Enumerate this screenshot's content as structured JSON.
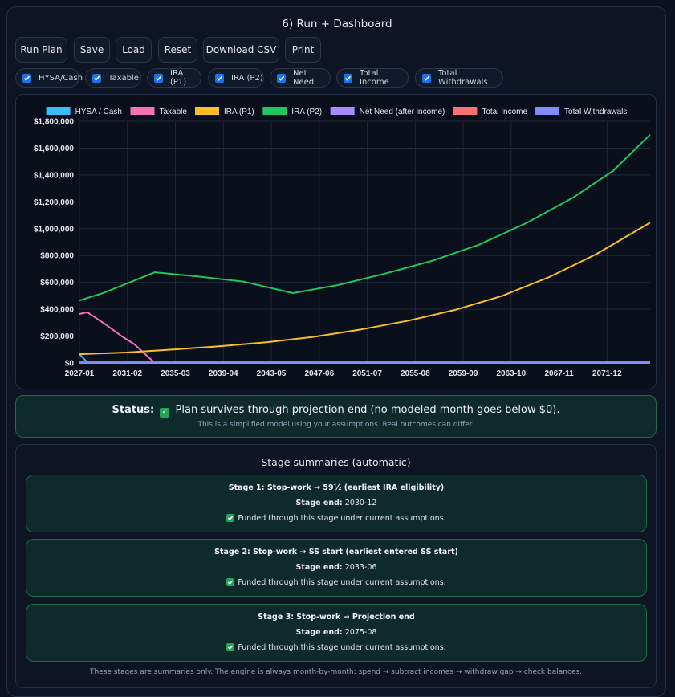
{
  "section_title": "6) Run + Dashboard",
  "buttons": [
    "Run Plan",
    "Save",
    "Load",
    "Reset",
    "Download CSV",
    "Print"
  ],
  "toggles": [
    "HYSA/Cash",
    "Taxable",
    "IRA (P1)",
    "IRA (P2)",
    "Net Need",
    "Total Income",
    "Total Withdrawals"
  ],
  "chart_data": {
    "type": "line",
    "legend_position": "top",
    "grid": true,
    "x_ticks": [
      "2027-01",
      "2031-02",
      "2035-03",
      "2039-04",
      "2043-05",
      "2047-06",
      "2051-07",
      "2055-08",
      "2059-09",
      "2063-10",
      "2067-11",
      "2071-12"
    ],
    "y_ticks": [
      "$0",
      "$200,000",
      "$400,000",
      "$600,000",
      "$800,000",
      "$1,000,000",
      "$1,200,000",
      "$1,400,000",
      "$1,600,000",
      "$1,800,000"
    ],
    "xlim": [
      "2027-01",
      "2075-08"
    ],
    "ylim": [
      0,
      1800000
    ],
    "series": [
      {
        "name": "HYSA / Cash",
        "color": "#38bdf8",
        "points": [
          [
            "2027-01",
            65000
          ],
          [
            "2027-09",
            5000
          ],
          [
            "2075-08",
            5000
          ]
        ]
      },
      {
        "name": "Taxable",
        "color": "#f472b6",
        "points": [
          [
            "2027-01",
            365000
          ],
          [
            "2027-09",
            378000
          ],
          [
            "2029-03",
            290000
          ],
          [
            "2030-09",
            195000
          ],
          [
            "2031-09",
            140000
          ],
          [
            "2033-06",
            0
          ],
          [
            "2075-08",
            0
          ]
        ]
      },
      {
        "name": "IRA (P1)",
        "color": "#fbbf24",
        "points": [
          [
            "2027-01",
            65000
          ],
          [
            "2031-01",
            78000
          ],
          [
            "2035-01",
            100000
          ],
          [
            "2039-01",
            125000
          ],
          [
            "2043-01",
            155000
          ],
          [
            "2047-01",
            195000
          ],
          [
            "2051-01",
            250000
          ],
          [
            "2055-01",
            315000
          ],
          [
            "2059-01",
            395000
          ],
          [
            "2063-01",
            500000
          ],
          [
            "2067-01",
            640000
          ],
          [
            "2071-01",
            810000
          ],
          [
            "2075-08",
            1045000
          ]
        ]
      },
      {
        "name": "IRA (P2)",
        "color": "#22c55e",
        "points": [
          [
            "2027-01",
            465000
          ],
          [
            "2029-01",
            520000
          ],
          [
            "2031-01",
            590000
          ],
          [
            "2033-06",
            675000
          ],
          [
            "2037-01",
            645000
          ],
          [
            "2041-01",
            605000
          ],
          [
            "2045-03",
            520000
          ],
          [
            "2049-01",
            580000
          ],
          [
            "2053-01",
            665000
          ],
          [
            "2057-01",
            760000
          ],
          [
            "2061-01",
            880000
          ],
          [
            "2065-01",
            1040000
          ],
          [
            "2069-01",
            1230000
          ],
          [
            "2072-06",
            1430000
          ],
          [
            "2075-08",
            1700000
          ]
        ]
      },
      {
        "name": "Net Need (after income)",
        "color": "#a78bfa",
        "points": [
          [
            "2027-01",
            5000
          ],
          [
            "2075-08",
            5000
          ]
        ]
      },
      {
        "name": "Total Income",
        "color": "#f87171",
        "points": [
          [
            "2027-01",
            0
          ],
          [
            "2075-08",
            0
          ]
        ]
      },
      {
        "name": "Total Withdrawals",
        "color": "#818cf8",
        "points": [
          [
            "2027-01",
            4000
          ],
          [
            "2075-08",
            5000
          ]
        ]
      }
    ]
  },
  "status": {
    "label": "Status:",
    "check": "✓",
    "message": "Plan survives through projection end (no modeled month goes below $0).",
    "note": "This is a simplified model using your assumptions. Real outcomes can differ."
  },
  "stages": {
    "title": "Stage summaries (automatic)",
    "end_label": "Stage end:",
    "items": [
      {
        "name": "Stage 1: Stop-work → 59½ (earliest IRA eligibility)",
        "end": "2030-12",
        "funded": "Funded through this stage under current assumptions."
      },
      {
        "name": "Stage 2: Stop-work → SS start (earliest entered SS start)",
        "end": "2033-06",
        "funded": "Funded through this stage under current assumptions."
      },
      {
        "name": "Stage 3: Stop-work → Projection end",
        "end": "2075-08",
        "funded": "Funded through this stage under current assumptions."
      }
    ],
    "footnote": "These stages are summaries only. The engine is always month-by-month: spend → subtract incomes → withdraw gap → check balances."
  }
}
